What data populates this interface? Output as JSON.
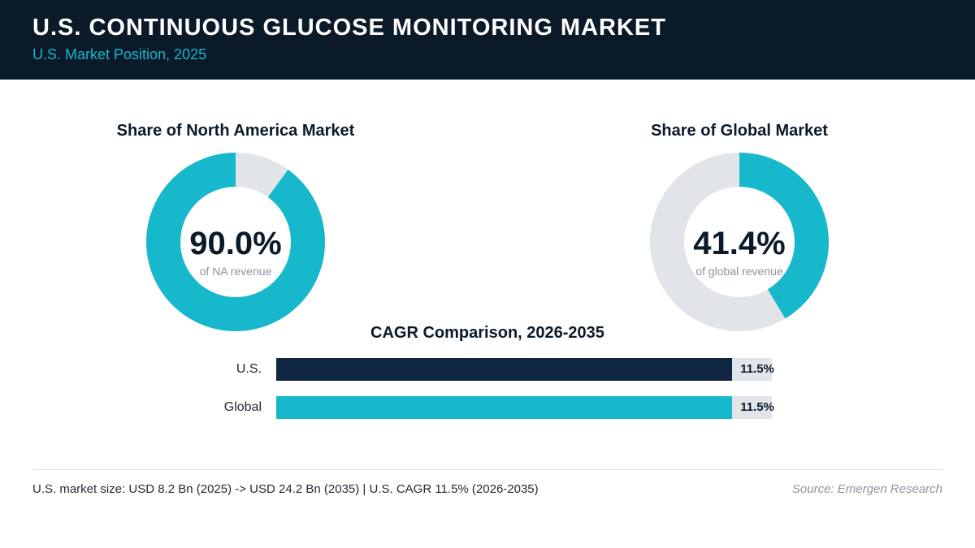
{
  "header": {
    "title": "U.S. CONTINUOUS GLUCOSE MONITORING MARKET",
    "subtitle": "U.S. Market Position, 2025"
  },
  "colors": {
    "accent": "#17b7cc",
    "dark": "#0f2740",
    "track": "#e1e5ea",
    "header_bg": "#0b1a29"
  },
  "chart_data": [
    {
      "type": "pie",
      "title": "Share of North America Market",
      "value_label": "90.0%",
      "caption": "of NA revenue",
      "values": [
        90.0,
        10.0
      ]
    },
    {
      "type": "pie",
      "title": "Share of Global Market",
      "value_label": "41.4%",
      "caption": "of global revenue",
      "values": [
        41.4,
        58.6
      ]
    },
    {
      "type": "bar",
      "title": "CAGR Comparison, 2026-2035",
      "categories": [
        "U.S.",
        "Global"
      ],
      "values": [
        11.5,
        11.5
      ],
      "value_labels": [
        "11.5%",
        "11.5%"
      ],
      "xlim": [
        0,
        12.5
      ]
    }
  ],
  "footer": {
    "note": "U.S. market size: USD 8.2 Bn (2025) -> USD 24.2 Bn (2035)  |  U.S. CAGR 11.5% (2026-2035)",
    "source": "Source: Emergen Research"
  }
}
